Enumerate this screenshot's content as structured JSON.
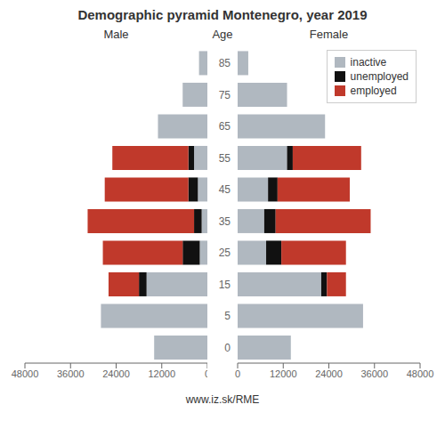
{
  "chart_data": [
    {
      "type": "bar",
      "orientation": "horizontal",
      "stacked": true,
      "title": "Demographic pyramid Montenegro, year 2019",
      "subtitle": "Male",
      "annotations": [
        "www.iz.sk/RME"
      ],
      "categories": [
        "0",
        "5",
        "15",
        "25",
        "35",
        "45",
        "55",
        "65",
        "75",
        "85"
      ],
      "series": [
        {
          "name": "inactive",
          "color": "#b0b8c0",
          "values": [
            14000,
            28000,
            16000,
            2000,
            1500,
            2500,
            3500,
            13000,
            6500,
            2200
          ]
        },
        {
          "name": "unemployed",
          "color": "#111111",
          "values": [
            0,
            0,
            2000,
            4500,
            2000,
            2500,
            1500,
            0,
            0,
            0
          ]
        },
        {
          "name": "employed",
          "color": "#c0392b",
          "values": [
            0,
            0,
            8000,
            21000,
            28000,
            22000,
            20000,
            0,
            0,
            0
          ]
        }
      ],
      "xlim": [
        48000,
        0
      ],
      "xticks": [
        48000,
        36000,
        24000,
        12000,
        0
      ]
    },
    {
      "type": "bar",
      "orientation": "horizontal",
      "stacked": true,
      "subtitle": "Female",
      "ylabel": "Age",
      "legend": "upper right",
      "categories": [
        "0",
        "5",
        "15",
        "25",
        "35",
        "45",
        "55",
        "65",
        "75",
        "85"
      ],
      "series": [
        {
          "name": "inactive",
          "color": "#b0b8c0",
          "values": [
            14000,
            33000,
            22000,
            7500,
            7000,
            8000,
            13000,
            23000,
            13000,
            2800
          ]
        },
        {
          "name": "unemployed",
          "color": "#111111",
          "values": [
            0,
            0,
            1500,
            4000,
            3000,
            2500,
            1500,
            0,
            0,
            0
          ]
        },
        {
          "name": "employed",
          "color": "#c0392b",
          "values": [
            0,
            0,
            5000,
            17000,
            25000,
            19000,
            18000,
            0,
            0,
            0
          ]
        }
      ],
      "xlim": [
        0,
        48000
      ],
      "xticks": [
        0,
        12000,
        24000,
        36000,
        48000
      ]
    }
  ]
}
